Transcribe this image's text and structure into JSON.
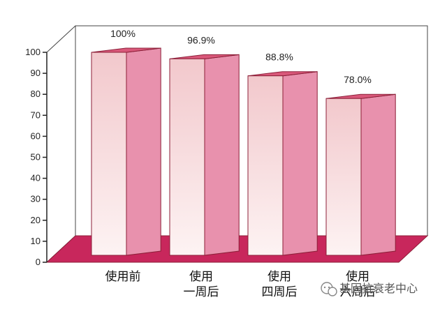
{
  "chart_data": {
    "type": "bar",
    "categories": [
      [
        "使用前"
      ],
      [
        "使用",
        "一周后"
      ],
      [
        "使用",
        "四周后"
      ],
      [
        "使用",
        "六周后"
      ]
    ],
    "values": [
      100,
      96.9,
      88.8,
      78.0
    ],
    "value_labels": [
      "100%",
      "96.9%",
      "88.8%",
      "78.0%"
    ],
    "yticks": [
      "0",
      "10",
      "20",
      "30",
      "40",
      "50",
      "60",
      "70",
      "80",
      "90",
      "100"
    ],
    "ylim": [
      0,
      100
    ],
    "style": "3d",
    "grid": false,
    "colors": {
      "bar_front_top": "#f2c8cc",
      "bar_front_bottom": "#fdf3f3",
      "bar_side": "#e891ad",
      "bar_top": "#d9587a",
      "bar_edge": "#8c1f38",
      "floor": "#c8275c",
      "axis": "#222222"
    }
  },
  "watermark": {
    "icon": "wechat-icon",
    "text": "基因抗衰老中心"
  }
}
